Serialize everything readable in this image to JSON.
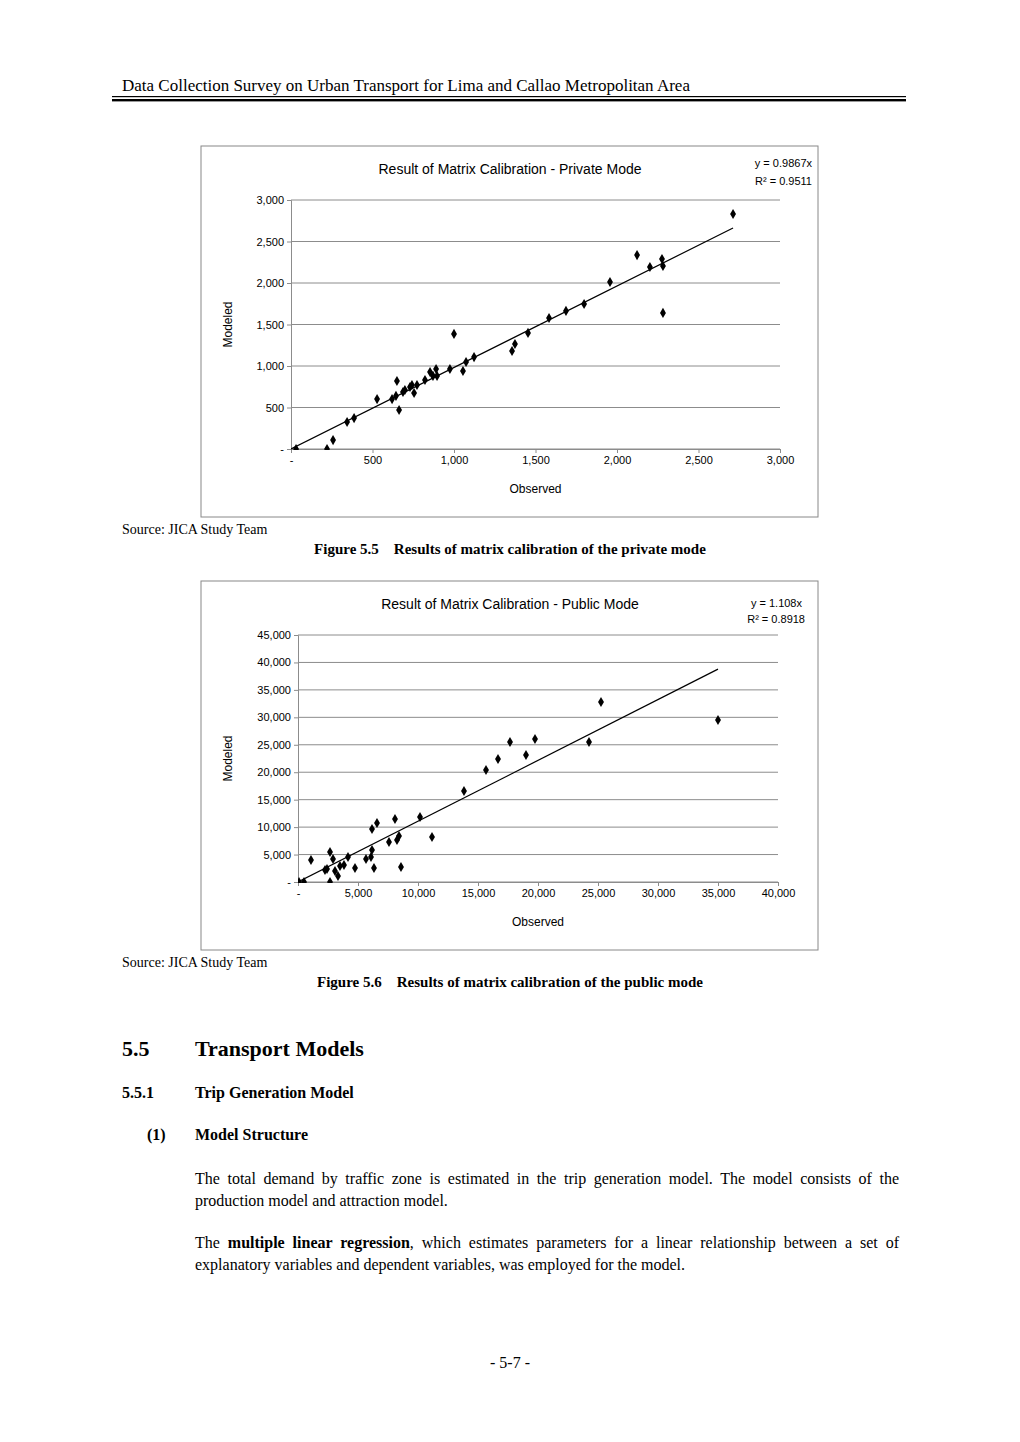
{
  "header": "Data Collection Survey on Urban Transport for Lima and Callao Metropolitan Area",
  "chart_data": [
    {
      "type": "scatter",
      "title": "Result of Matrix Calibration - Private Mode",
      "x_label": "Observed",
      "y_label": "Modeled",
      "color": "#000000",
      "marker": "diamond",
      "grid": true,
      "xlim": [
        0,
        3000
      ],
      "ylim": [
        0,
        3000
      ],
      "xticks": [
        {
          "value": 0,
          "label": "-"
        },
        500,
        {
          "value": 1000,
          "label": "1,000"
        },
        {
          "value": 1500,
          "label": "1,500"
        },
        {
          "value": 2000,
          "label": "2,000"
        },
        {
          "value": 2500,
          "label": "2,500"
        },
        {
          "value": 3000,
          "label": "3,000"
        }
      ],
      "yticks": [
        {
          "value": 0,
          "label": "-"
        },
        500,
        {
          "value": 1000,
          "label": "1,000"
        },
        {
          "value": 1500,
          "label": "1,500"
        },
        {
          "value": 2000,
          "label": "2,000"
        },
        {
          "value": 2500,
          "label": "2,500"
        },
        {
          "value": 3000,
          "label": "3,000"
        }
      ],
      "x": [
        31,
        221,
        258,
        344,
        387,
        528,
        620,
        644,
        650,
        663,
        687,
        699,
        730,
        742,
        755,
        773,
        822,
        853,
        871,
        890,
        896,
        975,
        1000,
        1055,
        1074,
        1123,
        1356,
        1374,
        1454,
        1583,
        1687,
        1798,
        1957,
        2123,
        2202,
        2276,
        2282,
        2282,
        2712
      ],
      "values": [
        0,
        0,
        108,
        325,
        373,
        602,
        602,
        639,
        819,
        470,
        687,
        711,
        747,
        771,
        675,
        771,
        831,
        928,
        880,
        964,
        880,
        964,
        1386,
        940,
        1048,
        1108,
        1181,
        1265,
        1398,
        1578,
        1663,
        1747,
        2012,
        2337,
        2193,
        2289,
        2205,
        1639,
        2831
      ],
      "trendline": {
        "x": [
          0,
          2712
        ],
        "values": [
          0,
          2663
        ]
      },
      "annotations": [
        "y = 0.9867x",
        "R² = 0.9511"
      ]
    },
    {
      "type": "scatter",
      "title": "Result of Matrix Calibration - Public Mode",
      "x_label": "Observed",
      "y_label": "Modeled",
      "color": "#000000",
      "marker": "diamond",
      "grid": true,
      "xlim": [
        0,
        40000
      ],
      "ylim": [
        0,
        45000
      ],
      "xticks": [
        {
          "value": 0,
          "label": "-"
        },
        {
          "value": 5000,
          "label": "5,000"
        },
        {
          "value": 10000,
          "label": "10,000"
        },
        {
          "value": 15000,
          "label": "15,000"
        },
        {
          "value": 20000,
          "label": "20,000"
        },
        {
          "value": 25000,
          "label": "25,000"
        },
        {
          "value": 30000,
          "label": "30,000"
        },
        {
          "value": 35000,
          "label": "35,000"
        },
        {
          "value": 40000,
          "label": "40,000"
        }
      ],
      "yticks": [
        {
          "value": 0,
          "label": "-"
        },
        {
          "value": 5000,
          "label": "5,000"
        },
        {
          "value": 10000,
          "label": "10,000"
        },
        {
          "value": 15000,
          "label": "15,000"
        },
        {
          "value": 20000,
          "label": "20,000"
        },
        {
          "value": 25000,
          "label": "25,000"
        },
        {
          "value": 30000,
          "label": "30,000"
        },
        {
          "value": 35000,
          "label": "35,000"
        },
        {
          "value": 40000,
          "label": "40,000"
        },
        {
          "value": 45000,
          "label": "45,000"
        }
      ],
      "x": [
        83,
        500,
        1083,
        2250,
        2417,
        2667,
        2667,
        2917,
        3083,
        3333,
        3500,
        3833,
        4167,
        4750,
        5667,
        6083,
        6167,
        6167,
        6333,
        6583,
        7583,
        8083,
        8250,
        8417,
        8583,
        10167,
        11167,
        13833,
        15667,
        16667,
        17667,
        19000,
        19750,
        24250,
        25250,
        35000
      ],
      "values": [
        0,
        0,
        4008,
        2186,
        2368,
        5466,
        0,
        4190,
        2004,
        1093,
        2915,
        3097,
        4555,
        2550,
        4190,
        4555,
        5830,
        9656,
        2550,
        10749,
        7288,
        11478,
        7652,
        8381,
        2733,
        11842,
        8199,
        16579,
        20405,
        22409,
        25506,
        23137,
        26052,
        25506,
        32793,
        29514
      ],
      "trendline": {
        "x": [
          0,
          35000
        ],
        "values": [
          0,
          38780
        ]
      },
      "annotations": [
        "y = 1.108x",
        "R² = 0.8918"
      ]
    }
  ],
  "figures": [
    {
      "source": "Source: JICA Study Team",
      "caption": "Figure 5.5    Results of matrix calibration of the private mode"
    },
    {
      "source": "Source: JICA Study Team",
      "caption": "Figure 5.6    Results of matrix calibration of the public mode"
    }
  ],
  "section": {
    "number": "5.5",
    "title": "Transport Models"
  },
  "subsection": {
    "number": "5.5.1",
    "title": "Trip Generation Model"
  },
  "item": {
    "number": "(1)",
    "title": "Model Structure"
  },
  "paragraphs": [
    {
      "text": "The total demand by traffic zone is estimated in the trip generation model.  The model consists of the production model and attraction model."
    },
    {
      "before": "The ",
      "bold": "multiple linear regression",
      "after": ", which estimates parameters for a linear relationship between a set of explanatory variables and dependent variables, was employed for the model."
    }
  ],
  "page_number": "- 5-7 -"
}
